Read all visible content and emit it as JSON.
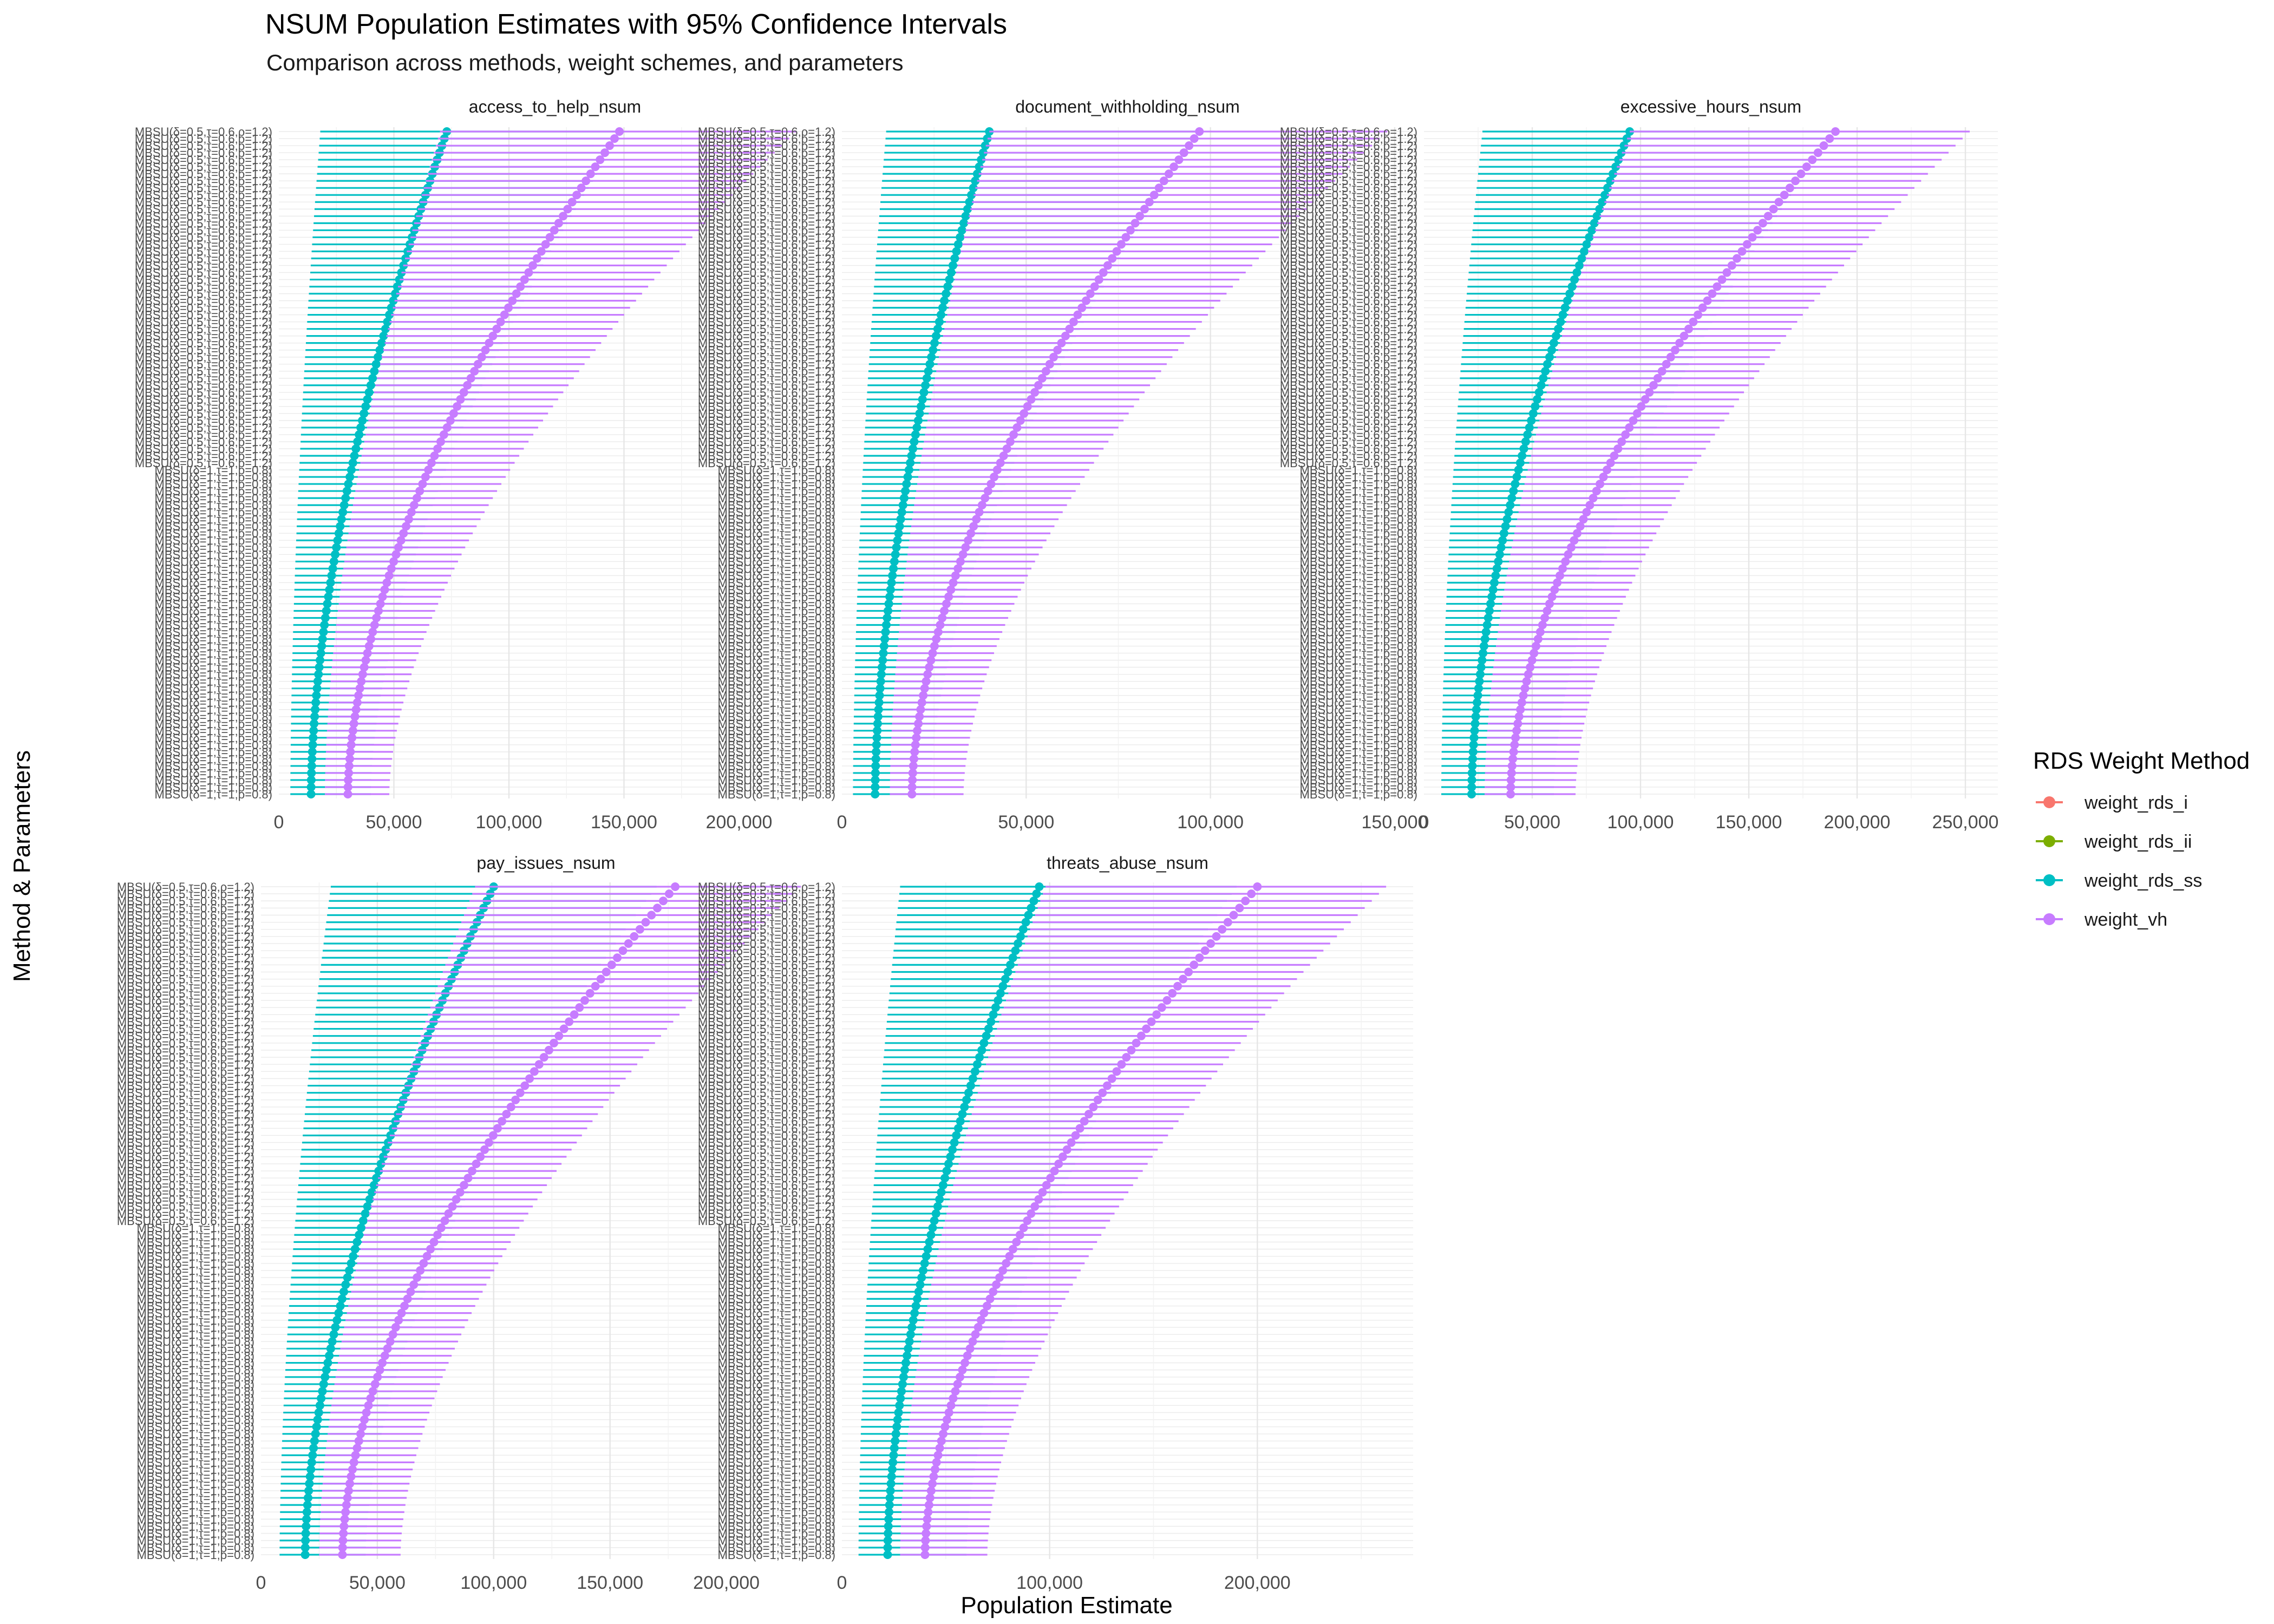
{
  "chart_data": {
    "type": "errorbar",
    "title": "NSUM Population Estimates with 95% Confidence Intervals",
    "subtitle": "Comparison across methods, weight schemes, and parameters",
    "xlabel": "Population Estimate",
    "ylabel": "Method & Parameters",
    "legend": {
      "title": "RDS Weight Method",
      "placement": "right",
      "entries": [
        {
          "name": "weight_rds_i",
          "color": "#F8766D"
        },
        {
          "name": "weight_rds_ii",
          "color": "#7CAE00"
        },
        {
          "name": "weight_rds_ss",
          "color": "#00BFC4"
        },
        {
          "name": "weight_vh",
          "color": "#C77CFF"
        }
      ]
    },
    "y_tick_labels": {
      "top": "MBSU(δ=0.5,τ=0.6,ρ=1.2)",
      "bottom": "MBSU(δ=1,τ=1,ρ=0.8)",
      "note": "y tick labels are overplotted and largely illegible"
    },
    "panels": [
      {
        "name": "access_to_help_nsum",
        "xlim": [
          0,
          240000
        ],
        "xticks": [
          0,
          50000,
          100000,
          150000,
          200000
        ],
        "xtick_labels": [
          "0",
          "50,000",
          "100,000",
          "150,000",
          "200,000"
        ],
        "series": {
          "weight_rds_ss": {
            "estimate_top": 73000,
            "estimate_bottom": 14000,
            "lower_top": 18000,
            "lower_bottom": 5000,
            "upper_top": 150000,
            "upper_bottom": 40000
          },
          "weight_vh": {
            "estimate_top": 148000,
            "estimate_bottom": 30000,
            "lower_top": 70000,
            "lower_bottom": 20000,
            "upper_top": 225000,
            "upper_bottom": 48000
          }
        }
      },
      {
        "name": "document_withholding_nsum",
        "xlim": [
          0,
          155000
        ],
        "xticks": [
          0,
          50000,
          100000,
          150000
        ],
        "xtick_labels": [
          "0",
          "50,000",
          "100,000",
          "150,000"
        ],
        "series": {
          "weight_rds_ss": {
            "estimate_top": 40000,
            "estimate_bottom": 9000,
            "lower_top": 12000,
            "lower_bottom": 3000,
            "upper_top": 98000,
            "upper_bottom": 24000
          },
          "weight_vh": {
            "estimate_top": 97000,
            "estimate_bottom": 19000,
            "lower_top": 40000,
            "lower_bottom": 13000,
            "upper_top": 148000,
            "upper_bottom": 33000
          }
        }
      },
      {
        "name": "excessive_hours_nsum",
        "xlim": [
          0,
          265000
        ],
        "xticks": [
          0,
          50000,
          100000,
          150000,
          200000,
          250000
        ],
        "xtick_labels": [
          "0",
          "50,000",
          "100,000",
          "150,000",
          "200,000",
          "250,000"
        ],
        "series": {
          "weight_rds_ss": {
            "estimate_top": 95000,
            "estimate_bottom": 22000,
            "lower_top": 27000,
            "lower_bottom": 8000,
            "upper_top": 190000,
            "upper_bottom": 60000
          },
          "weight_vh": {
            "estimate_top": 190000,
            "estimate_bottom": 40000,
            "lower_top": 95000,
            "lower_bottom": 28000,
            "upper_top": 252000,
            "upper_bottom": 70000
          }
        }
      },
      {
        "name": "pay_issues_nsum",
        "xlim": [
          0,
          245000
        ],
        "xticks": [
          0,
          50000,
          100000,
          150000,
          200000
        ],
        "xtick_labels": [
          "0",
          "50,000",
          "100,000",
          "150,000",
          "200,000"
        ],
        "series": {
          "weight_rds_ss": {
            "estimate_top": 100000,
            "estimate_bottom": 19000,
            "lower_top": 30000,
            "lower_bottom": 8000,
            "upper_top": 170000,
            "upper_bottom": 45000
          },
          "weight_vh": {
            "estimate_top": 178000,
            "estimate_bottom": 35000,
            "lower_top": 92000,
            "lower_bottom": 25000,
            "upper_top": 232000,
            "upper_bottom": 60000
          }
        }
      },
      {
        "name": "threats_abuse_nsum",
        "xlim": [
          0,
          275000
        ],
        "xticks": [
          0,
          100000,
          200000
        ],
        "xtick_labels": [
          "0",
          "100,000",
          "200,000"
        ],
        "series": {
          "weight_rds_ss": {
            "estimate_top": 95000,
            "estimate_bottom": 22000,
            "lower_top": 28000,
            "lower_bottom": 8000,
            "upper_top": 190000,
            "upper_bottom": 60000
          },
          "weight_vh": {
            "estimate_top": 200000,
            "estimate_bottom": 40000,
            "lower_top": 98000,
            "lower_bottom": 28000,
            "upper_top": 262000,
            "upper_bottom": 70000
          }
        }
      }
    ]
  }
}
